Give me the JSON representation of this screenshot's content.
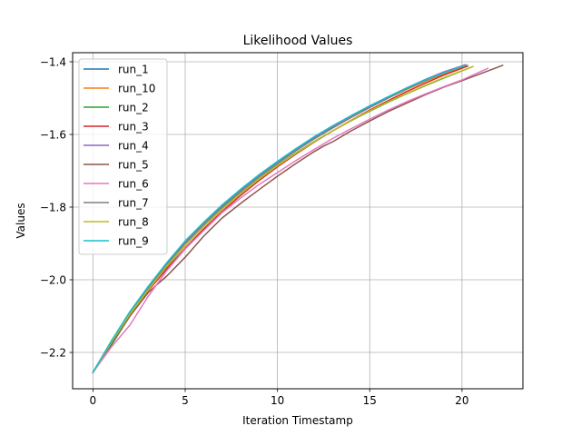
{
  "chart_data": {
    "type": "line",
    "title": "Likelihood Values",
    "xlabel": "Iteration Timestamp",
    "ylabel": "Values",
    "xlim": [
      -1.1,
      23.3
    ],
    "ylim": [
      -2.3,
      -1.375
    ],
    "xticks": [
      0,
      5,
      10,
      15,
      20
    ],
    "xtick_labels": [
      "0",
      "5",
      "10",
      "15",
      "20"
    ],
    "yticks": [
      -2.2,
      -2.0,
      -1.8,
      -1.6,
      -1.4
    ],
    "ytick_labels": [
      "−2.2",
      "−2.0",
      "−1.8",
      "−1.6",
      "−1.4"
    ],
    "grid": true,
    "legend_position": "upper-left",
    "series": [
      {
        "name": "run_1",
        "color": "#1f77b4",
        "x": [
          0,
          1,
          2,
          3,
          4,
          5,
          6,
          7,
          8,
          9,
          10,
          11,
          12,
          13,
          14,
          15,
          16,
          17,
          18,
          19,
          20.2
        ],
        "y": [
          -2.255,
          -2.17,
          -2.09,
          -2.02,
          -1.955,
          -1.895,
          -1.845,
          -1.795,
          -1.752,
          -1.712,
          -1.675,
          -1.64,
          -1.607,
          -1.577,
          -1.549,
          -1.522,
          -1.497,
          -1.473,
          -1.451,
          -1.431,
          -1.41
        ]
      },
      {
        "name": "run_10",
        "color": "#ff7f0e",
        "x": [
          0,
          1,
          2,
          3,
          4,
          5,
          6,
          7,
          8,
          9,
          10,
          11,
          12,
          13,
          14,
          15,
          16,
          17,
          18,
          19,
          20.3
        ],
        "y": [
          -2.255,
          -2.17,
          -2.095,
          -2.025,
          -1.96,
          -1.9,
          -1.849,
          -1.8,
          -1.757,
          -1.716,
          -1.679,
          -1.644,
          -1.611,
          -1.581,
          -1.553,
          -1.526,
          -1.5,
          -1.476,
          -1.454,
          -1.434,
          -1.41
        ]
      },
      {
        "name": "run_2",
        "color": "#2ca02c",
        "x": [
          0,
          1,
          2,
          3,
          4,
          5,
          6,
          7,
          8,
          9,
          10,
          11,
          12,
          13,
          14,
          15,
          16,
          17,
          18,
          19,
          20.5
        ],
        "y": [
          -2.255,
          -2.18,
          -2.1,
          -2.03,
          -1.965,
          -1.905,
          -1.853,
          -1.805,
          -1.762,
          -1.722,
          -1.685,
          -1.651,
          -1.619,
          -1.59,
          -1.562,
          -1.536,
          -1.511,
          -1.488,
          -1.466,
          -1.445,
          -1.415
        ]
      },
      {
        "name": "run_3",
        "color": "#d62728",
        "x": [
          0,
          1,
          2,
          3,
          4,
          5,
          6,
          7,
          8,
          9,
          10,
          11,
          12,
          13,
          14,
          15,
          16,
          17,
          18,
          19,
          20.3
        ],
        "y": [
          -2.255,
          -2.175,
          -2.1,
          -2.03,
          -1.97,
          -1.913,
          -1.86,
          -1.812,
          -1.768,
          -1.727,
          -1.689,
          -1.654,
          -1.621,
          -1.59,
          -1.561,
          -1.533,
          -1.507,
          -1.482,
          -1.459,
          -1.437,
          -1.412
        ]
      },
      {
        "name": "run_4",
        "color": "#9467bd",
        "x": [
          0,
          1,
          2,
          3,
          4,
          5,
          6,
          7,
          8,
          9,
          10,
          11,
          12,
          13,
          14,
          15,
          16,
          17,
          18,
          19,
          20.2
        ],
        "y": [
          -2.255,
          -2.17,
          -2.09,
          -2.02,
          -1.955,
          -1.897,
          -1.846,
          -1.797,
          -1.754,
          -1.714,
          -1.677,
          -1.642,
          -1.609,
          -1.579,
          -1.55,
          -1.523,
          -1.497,
          -1.472,
          -1.449,
          -1.428,
          -1.408
        ]
      },
      {
        "name": "run_5",
        "color": "#8c564b",
        "x": [
          0,
          1,
          2,
          3,
          3.5,
          4,
          5,
          6,
          7,
          8,
          9,
          10,
          11,
          12,
          12.5,
          13,
          14,
          15,
          16,
          17,
          18,
          19,
          20,
          21,
          22.2
        ],
        "y": [
          -2.255,
          -2.175,
          -2.1,
          -2.035,
          -2.012,
          -1.99,
          -1.938,
          -1.88,
          -1.83,
          -1.79,
          -1.752,
          -1.715,
          -1.68,
          -1.647,
          -1.632,
          -1.62,
          -1.59,
          -1.563,
          -1.537,
          -1.514,
          -1.491,
          -1.47,
          -1.452,
          -1.433,
          -1.41
        ]
      },
      {
        "name": "run_6",
        "color": "#e377c2",
        "x": [
          0,
          1,
          2,
          3,
          4,
          5,
          6,
          7,
          8,
          9,
          10,
          11,
          12,
          13,
          14,
          15,
          16,
          17,
          18,
          19,
          20,
          21.4
        ],
        "y": [
          -2.255,
          -2.185,
          -2.125,
          -2.045,
          -1.975,
          -1.915,
          -1.865,
          -1.815,
          -1.775,
          -1.738,
          -1.705,
          -1.672,
          -1.641,
          -1.611,
          -1.584,
          -1.558,
          -1.533,
          -1.51,
          -1.489,
          -1.469,
          -1.45,
          -1.418
        ]
      },
      {
        "name": "run_7",
        "color": "#7f7f7f",
        "x": [
          0,
          1,
          2,
          3,
          4,
          5,
          6,
          7,
          8,
          9,
          10,
          11,
          12,
          13,
          14,
          15,
          16,
          17,
          18,
          19,
          20.1
        ],
        "y": [
          -2.255,
          -2.17,
          -2.09,
          -2.022,
          -1.958,
          -1.9,
          -1.848,
          -1.8,
          -1.757,
          -1.717,
          -1.68,
          -1.645,
          -1.612,
          -1.582,
          -1.553,
          -1.526,
          -1.5,
          -1.475,
          -1.452,
          -1.431,
          -1.41
        ]
      },
      {
        "name": "run_8",
        "color": "#bcbd22",
        "x": [
          0,
          1,
          2,
          3,
          4,
          5,
          6,
          7,
          8,
          9,
          10,
          11,
          12,
          13,
          14,
          15,
          16,
          17,
          18,
          19,
          20.6
        ],
        "y": [
          -2.255,
          -2.172,
          -2.095,
          -2.028,
          -1.963,
          -1.905,
          -1.853,
          -1.806,
          -1.763,
          -1.723,
          -1.686,
          -1.652,
          -1.62,
          -1.59,
          -1.562,
          -1.535,
          -1.51,
          -1.487,
          -1.465,
          -1.444,
          -1.413
        ]
      },
      {
        "name": "run_9",
        "color": "#17becf",
        "x": [
          0,
          1,
          2,
          3,
          4,
          5,
          6,
          7,
          8,
          9,
          10,
          11,
          12,
          13,
          14,
          15,
          16,
          17,
          18,
          19,
          20.2
        ],
        "y": [
          -2.255,
          -2.168,
          -2.088,
          -2.018,
          -1.953,
          -1.893,
          -1.842,
          -1.794,
          -1.751,
          -1.711,
          -1.674,
          -1.639,
          -1.606,
          -1.576,
          -1.548,
          -1.521,
          -1.496,
          -1.472,
          -1.45,
          -1.43,
          -1.41
        ]
      }
    ]
  }
}
